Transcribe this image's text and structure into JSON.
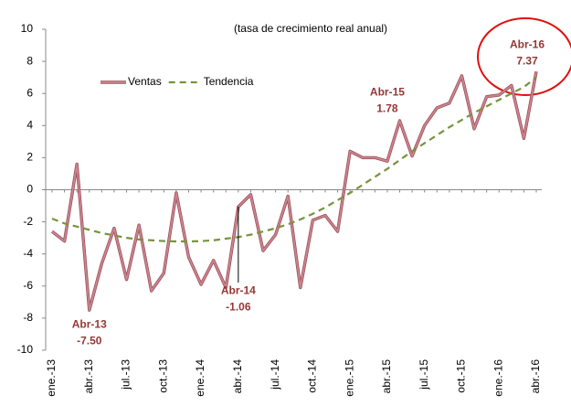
{
  "chart_data": {
    "type": "line",
    "subtitle": "(tasa de crecimiento real anual)",
    "categories": [
      "ene.-13",
      null,
      null,
      "abr.-13",
      null,
      null,
      "jul.-13",
      null,
      null,
      "oct.-13",
      null,
      null,
      "ene.-14",
      null,
      null,
      "abr.-14",
      null,
      null,
      "jul.-14",
      null,
      null,
      "oct.-14",
      null,
      null,
      "ene.-15",
      null,
      null,
      "abr.-15",
      null,
      null,
      "jul.-15",
      null,
      null,
      "oct.-15",
      null,
      null,
      "ene.-16",
      null,
      null,
      "abr.-16"
    ],
    "series": [
      {
        "name": "Ventas",
        "color": "#c8868f",
        "style": "solid",
        "values": [
          -2.6,
          -3.2,
          1.6,
          -7.5,
          -4.6,
          -2.4,
          -5.6,
          -2.2,
          -6.3,
          -5.2,
          -0.2,
          -4.2,
          -5.9,
          -4.4,
          -6.1,
          -1.06,
          -0.3,
          -3.8,
          -2.8,
          -0.4,
          -6.1,
          -1.9,
          -1.6,
          -2.6,
          2.4,
          2.0,
          2.0,
          1.78,
          4.3,
          2.1,
          4.0,
          5.1,
          5.4,
          7.1,
          3.8,
          5.8,
          5.9,
          6.5,
          3.2,
          7.37
        ],
        "point_labels": [
          null,
          null,
          null,
          "Abr-13",
          null,
          null,
          null,
          null,
          null,
          null,
          null,
          null,
          null,
          null,
          null,
          "Abr-14",
          null,
          null,
          null,
          null,
          null,
          null,
          null,
          null,
          null,
          null,
          null,
          "Abr-15",
          null,
          null,
          null,
          null,
          null,
          null,
          null,
          null,
          null,
          null,
          null,
          "Abr-16"
        ],
        "value_labels": [
          null,
          null,
          null,
          "-7.50",
          null,
          null,
          null,
          null,
          null,
          null,
          null,
          null,
          null,
          null,
          null,
          "-1.06",
          null,
          null,
          null,
          null,
          null,
          null,
          null,
          null,
          null,
          null,
          null,
          "1.78",
          null,
          null,
          null,
          null,
          null,
          null,
          null,
          null,
          null,
          null,
          null,
          "7.37"
        ]
      },
      {
        "name": "Tendencia",
        "color": "#77933c",
        "style": "dashed",
        "values": [
          -1.8,
          -2.1,
          -2.3,
          -2.5,
          -2.7,
          -2.85,
          -3.0,
          -3.1,
          -3.15,
          -3.2,
          -3.22,
          -3.22,
          -3.2,
          -3.15,
          -3.05,
          -2.95,
          -2.8,
          -2.6,
          -2.4,
          -2.15,
          -1.85,
          -1.5,
          -1.1,
          -0.65,
          -0.2,
          0.3,
          0.8,
          1.3,
          1.85,
          2.4,
          2.9,
          3.4,
          3.9,
          4.35,
          4.8,
          5.2,
          5.6,
          6.0,
          6.4,
          7.0
        ]
      }
    ],
    "ylim": [
      -10,
      10
    ],
    "yticks": [
      -10,
      -8,
      -6,
      -4,
      -2,
      0,
      2,
      4,
      6,
      8,
      10
    ],
    "grid": false,
    "legend": "upper left"
  }
}
